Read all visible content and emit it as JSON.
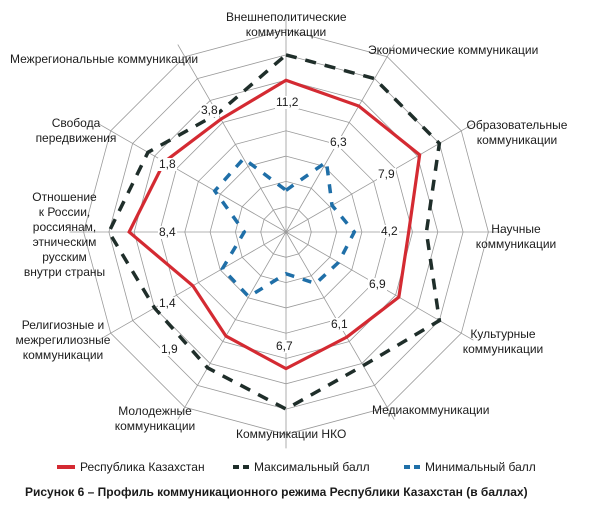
{
  "chart_data": {
    "type": "radar",
    "title": "Рисунок 6 – Профиль коммуникационного режима Республики Казахстан (в баллах)",
    "categories": [
      "Внешнеполитические коммуникации",
      "Экономические коммуникации",
      "Образовательные коммуникации",
      "Научные коммуникации",
      "Культурные коммуникации",
      "Медиакоммуникации",
      "Коммуникации НКО",
      "Молодежные коммуникации",
      "Религиозные и межрегилиозные коммуникации",
      "Отношение к России, россиянам, этническим русским внутри страны",
      "Свобода передвижения",
      "Межрегиональные коммуникации"
    ],
    "printed_value_labels": [
      "11,2",
      "6,3",
      "7,9",
      "4,2",
      "6,9",
      "6,1",
      "6,7",
      "1,9",
      "1,4",
      "8,4",
      "1,8",
      "3,8"
    ],
    "printed_value_labels_note": "Numbers printed beside each axis. They do not match the plotted radii (e.g. 4,2 sits beside a near-outer red vertex), so they are reproduced verbatim and not used to place the series.",
    "rings": 7,
    "series_values_note": "Series values are approximate, estimated from pixel radii on a 0-7 ring scale (~25.3 px per ring); they are not read from labelled ticks.",
    "series": [
      {
        "name": "Республика Казахстан",
        "color": "#d42a32",
        "style": "solid",
        "values": [
          6.0,
          5.75,
          6.1,
          4.85,
          5.15,
          4.8,
          5.4,
          4.75,
          4.25,
          6.2,
          5.55,
          5.15
        ]
      },
      {
        "name": "Максимальный балл",
        "color": "#1f2e2a",
        "style": "dashed",
        "values": [
          7.0,
          7.0,
          7.0,
          5.55,
          7.0,
          6.1,
          7.0,
          6.2,
          6.0,
          7.0,
          6.3,
          5.4
        ]
      },
      {
        "name": "Минимальный балл",
        "color": "#1f6fa8",
        "style": "dashed",
        "values": [
          1.65,
          3.2,
          2.1,
          2.7,
          2.4,
          2.35,
          1.65,
          2.95,
          2.9,
          1.65,
          3.25,
          3.35
        ]
      }
    ]
  },
  "legend": {
    "items": [
      {
        "label": "Республика Казахстан",
        "color": "#d42a32"
      },
      {
        "label": "Максимальный балл",
        "color": "#1f2e2a"
      },
      {
        "label": "Минимальный балл",
        "color": "#1f6fa8"
      }
    ]
  },
  "caption": "Рисунок 6 – Профиль коммуникационного режима Республики Казахстан (в баллах)",
  "axis_labels": [
    "Внешнеполитические\nкоммуникации",
    "Экономические коммуникации",
    "Образовательные\nкоммуникации",
    "Научные\nкоммуникации",
    "Культурные\nкоммуникации",
    "Медиакоммуникации",
    "Коммуникации НКО",
    "Молодежные\nкоммуникации",
    "Религиозные и\nмежрегилиозные\nкоммуникации",
    "Отношение\nк России,\nроссиянам,\nэтническим\nрусским\nвнутри страны",
    "Свобода\nпередвижения",
    "Межрегиональные коммуникации"
  ],
  "value_labels": [
    "11,2",
    "6,3",
    "7,9",
    "4,2",
    "6,9",
    "6,1",
    "6,7",
    "1,9",
    "1,4",
    "8,4",
    "1,8",
    "3,8"
  ]
}
